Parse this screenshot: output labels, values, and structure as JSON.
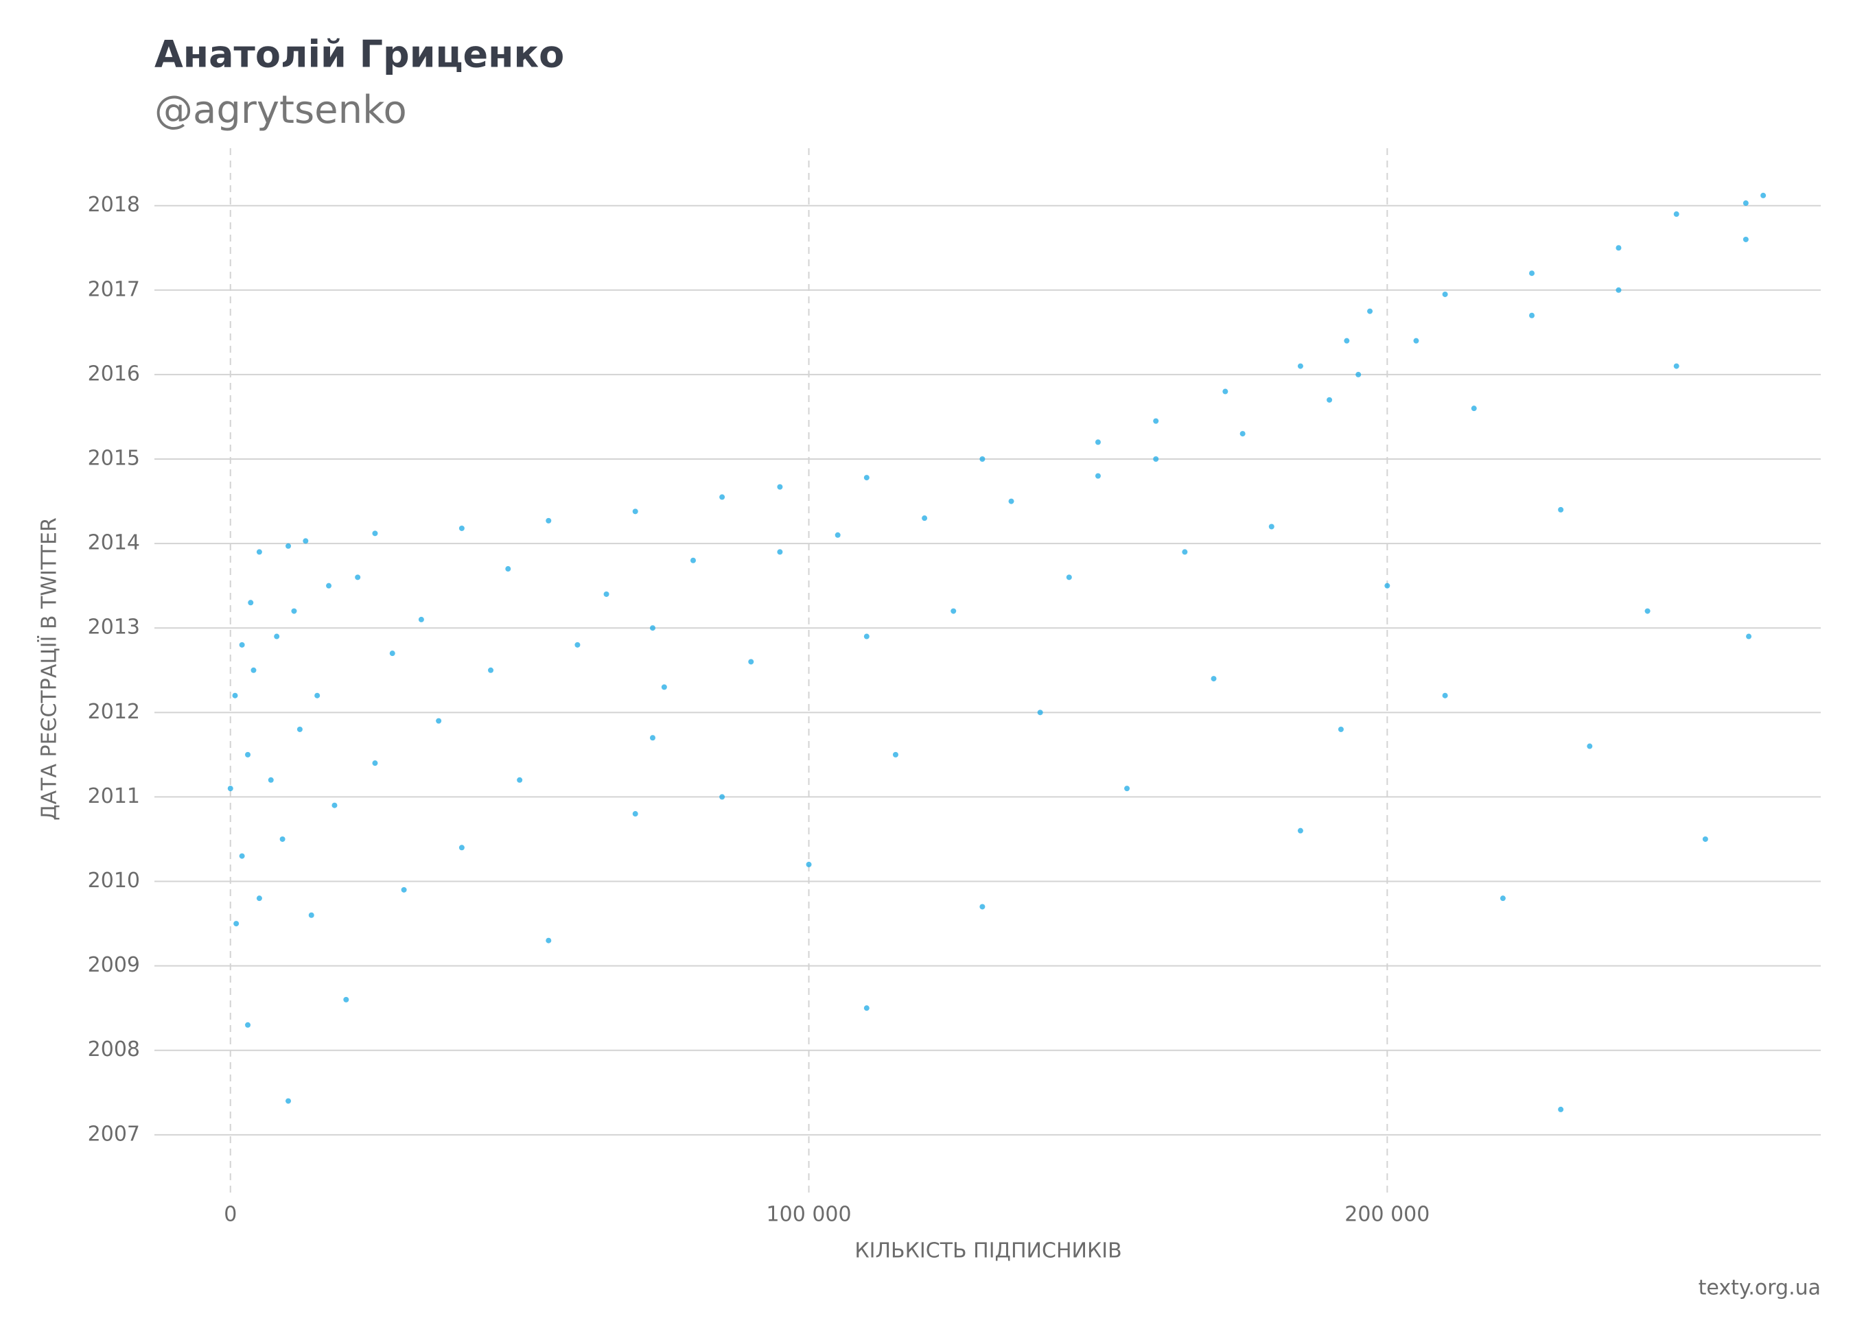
{
  "chart_data": {
    "type": "scatter",
    "title": "Анатолій Гриценко",
    "subtitle": "@agrytsenko",
    "x_label": "КІЛЬКІСТЬ ПІДПИСНИКІВ",
    "y_label": "ДАТА РЕЄСТРАЦІЇ В TWITTER",
    "source": "texty.org.ua",
    "color": "#1ca9e6",
    "grid": true,
    "xlim": [
      -13142,
      274949
    ],
    "ylim": [
      2006.3,
      2018.68
    ],
    "xticks": [
      0,
      {
        "value": 100000,
        "label": "100 000"
      },
      {
        "value": 200000,
        "label": "200 000"
      }
    ],
    "yticks": [
      2007,
      2008,
      2009,
      2010,
      2011,
      2012,
      2013,
      2014,
      2015,
      2016,
      2017,
      2018
    ],
    "x": [
      0,
      800,
      2000,
      3500,
      5000,
      10000,
      13000,
      25000,
      40000,
      55000,
      70000,
      85000,
      95000,
      110000,
      130000,
      150000,
      160000,
      172000,
      185000,
      193000,
      197000,
      210000,
      225000,
      240000,
      250000,
      262000,
      265000,
      1000,
      2000,
      3000,
      4000,
      5000,
      7000,
      8000,
      9000,
      11000,
      12000,
      14000,
      15000,
      17000,
      18000,
      20000,
      22000,
      25000,
      28000,
      30000,
      33000,
      36000,
      40000,
      45000,
      48000,
      50000,
      55000,
      60000,
      65000,
      70000,
      73000,
      73000,
      75000,
      80000,
      85000,
      90000,
      95000,
      100000,
      105000,
      110000,
      115000,
      120000,
      125000,
      130000,
      135000,
      140000,
      145000,
      150000,
      155000,
      160000,
      165000,
      170000,
      175000,
      180000,
      185000,
      190000,
      192000,
      195000,
      200000,
      205000,
      210000,
      215000,
      220000,
      225000,
      230000,
      235000,
      240000,
      245000,
      250000,
      255000,
      262000,
      262500,
      3000,
      10000,
      110000,
      230000
    ],
    "values": [
      2011.1,
      2012.2,
      2012.8,
      2013.3,
      2013.9,
      2013.97,
      2014.03,
      2014.12,
      2014.18,
      2014.27,
      2014.38,
      2014.55,
      2014.67,
      2014.78,
      2015.0,
      2015.2,
      2015.45,
      2015.8,
      2016.1,
      2016.4,
      2016.75,
      2016.95,
      2017.2,
      2017.5,
      2017.9,
      2018.03,
      2018.12,
      2009.5,
      2010.3,
      2011.5,
      2012.5,
      2009.8,
      2011.2,
      2012.9,
      2010.5,
      2013.2,
      2011.8,
      2009.6,
      2012.2,
      2013.5,
      2010.9,
      2008.6,
      2013.6,
      2011.4,
      2012.7,
      2009.9,
      2013.1,
      2011.9,
      2010.4,
      2012.5,
      2013.7,
      2011.2,
      2009.3,
      2012.8,
      2013.4,
      2010.8,
      2011.7,
      2013.0,
      2012.3,
      2013.8,
      2011.0,
      2012.6,
      2013.9,
      2010.2,
      2014.1,
      2012.9,
      2011.5,
      2014.3,
      2013.2,
      2009.7,
      2014.5,
      2012.0,
      2013.6,
      2014.8,
      2011.1,
      2015.0,
      2013.9,
      2012.4,
      2015.3,
      2014.2,
      2010.6,
      2015.7,
      2011.8,
      2016.0,
      2013.5,
      2016.4,
      2012.2,
      2015.6,
      2009.8,
      2016.7,
      2014.4,
      2011.6,
      2017.0,
      2013.2,
      2016.1,
      2010.5,
      2017.6,
      2012.9,
      2008.3,
      2007.4,
      2008.5,
      2007.3
    ]
  }
}
